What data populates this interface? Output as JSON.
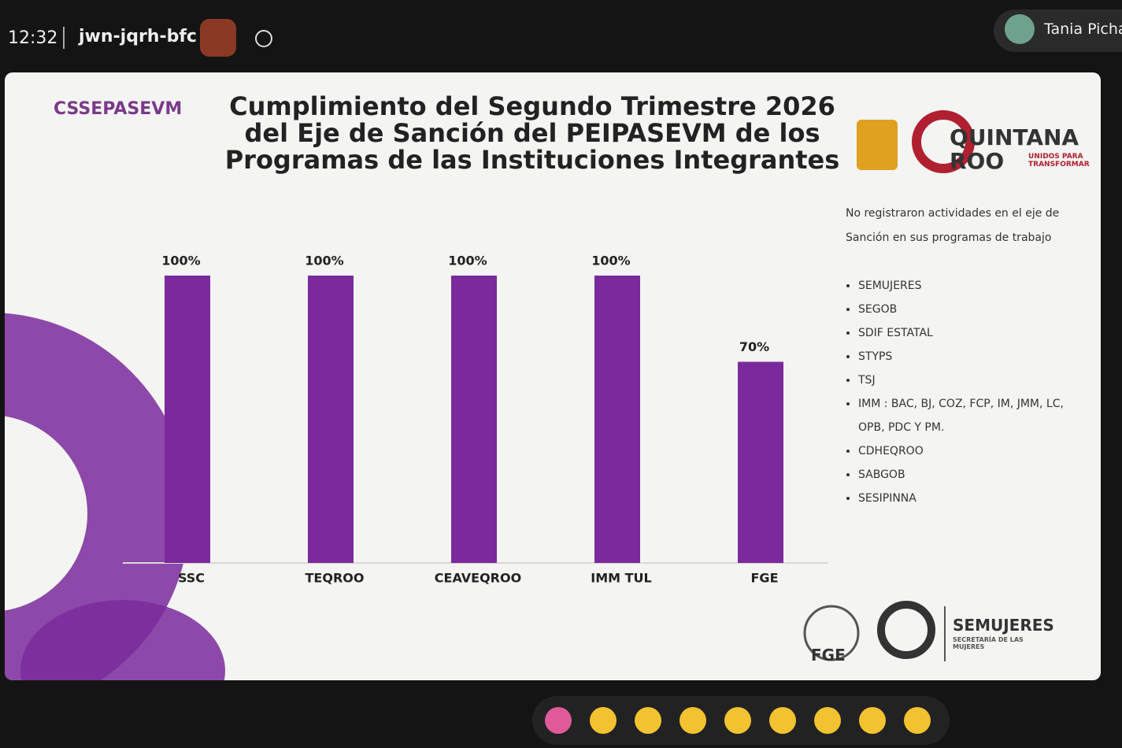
{
  "meeting": {
    "time": "12:32",
    "code": "jwn-jqrh-bfc",
    "participant": "Tania Picha"
  },
  "slide": {
    "org": "CSSEPASEVM",
    "logo_name": "QUINTANA ROO",
    "logo_motto": "UNIDOS PARA TRANSFORMAR",
    "note": "No registraron actividades en el eje de Sanción en sus programas de trabajo",
    "list": [
      "SEMUJERES",
      "SEGOB",
      "SDIF ESTATAL",
      "STYPS",
      "TSJ",
      "IMM : BAC, BJ, COZ, FCP, IM, JMM, LC,  OPB, PDC Y PM.",
      "CDHEQROO",
      "SABGOB",
      "SESIPINNA"
    ],
    "footer": {
      "fge": "FGE",
      "semujeres": "SEMUJERES",
      "semujeres_sub": "SECRETARÍA DE LAS MUJERES"
    }
  },
  "chart_data": {
    "type": "bar",
    "title": "Cumplimiento del Segundo Trimestre 2026 del Eje de Sanción del PEIPASEVM de los Programas de las Instituciones Integrantes",
    "categories": [
      "SSC",
      "TEQROO",
      "CEAVEQROO",
      "IMM TUL",
      "FGE"
    ],
    "values": [
      100,
      100,
      100,
      100,
      70
    ],
    "value_labels": [
      "100%",
      "100%",
      "100%",
      "100%",
      "70%"
    ],
    "color": "#7a2a9c"
  }
}
